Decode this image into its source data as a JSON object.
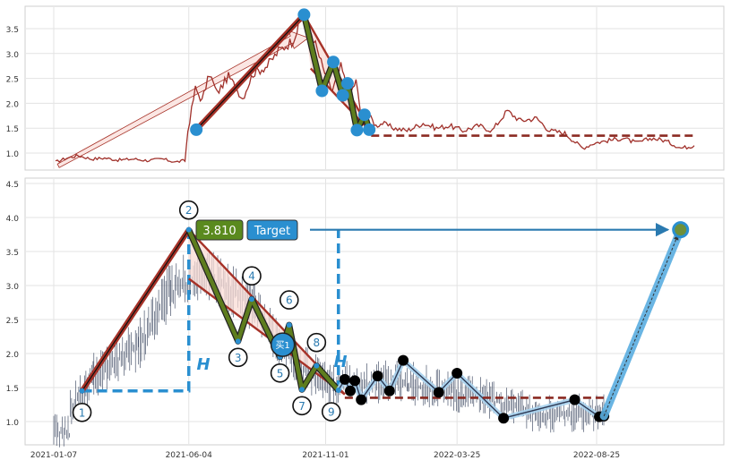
{
  "chart_data": [
    {
      "type": "line",
      "panel": "overview",
      "ylim": [
        0.8,
        3.95
      ],
      "yticks": [
        "1.0",
        "1.5",
        "2.0",
        "2.5",
        "3.0",
        "3.5"
      ],
      "grid": true,
      "price_series": [
        [
          "2021-01-08",
          0.82
        ],
        [
          "2021-01-20",
          0.9
        ],
        [
          "2021-02-01",
          0.95
        ],
        [
          "2021-02-15",
          0.88
        ],
        [
          "2021-03-01",
          0.9
        ],
        [
          "2021-03-15",
          0.86
        ],
        [
          "2021-04-01",
          0.88
        ],
        [
          "2021-04-15",
          0.85
        ],
        [
          "2021-05-01",
          0.88
        ],
        [
          "2021-05-15",
          0.82
        ],
        [
          "2021-05-25",
          0.85
        ],
        [
          "2021-05-28",
          1.45
        ],
        [
          "2021-06-05",
          2.3
        ],
        [
          "2021-06-12",
          2.05
        ],
        [
          "2021-06-20",
          2.6
        ],
        [
          "2021-06-28",
          2.2
        ],
        [
          "2021-07-10",
          2.55
        ],
        [
          "2021-07-25",
          2.1
        ],
        [
          "2021-08-05",
          2.6
        ],
        [
          "2021-08-20",
          2.75
        ],
        [
          "2021-09-01",
          3.05
        ],
        [
          "2021-09-15",
          3.25
        ],
        [
          "2021-09-28",
          3.78
        ],
        [
          "2021-10-08",
          3.3
        ],
        [
          "2021-10-18",
          2.7
        ],
        [
          "2021-10-28",
          2.25
        ],
        [
          "2021-11-06",
          2.75
        ],
        [
          "2021-11-15",
          2.15
        ],
        [
          "2021-11-22",
          2.45
        ],
        [
          "2021-11-29",
          1.55
        ],
        [
          "2021-12-06",
          1.75
        ],
        [
          "2021-12-13",
          1.55
        ],
        [
          "2021-12-20",
          1.6
        ],
        [
          "2022-01-01",
          1.5
        ],
        [
          "2022-01-15",
          1.45
        ],
        [
          "2022-02-01",
          1.6
        ],
        [
          "2022-02-15",
          1.5
        ],
        [
          "2022-03-01",
          1.55
        ],
        [
          "2022-03-15",
          1.45
        ],
        [
          "2022-04-01",
          1.55
        ],
        [
          "2022-04-15",
          1.45
        ],
        [
          "2022-05-01",
          1.85
        ],
        [
          "2022-05-15",
          1.65
        ],
        [
          "2022-06-01",
          1.7
        ],
        [
          "2022-06-15",
          1.45
        ],
        [
          "2022-07-01",
          1.4
        ],
        [
          "2022-07-10",
          1.25
        ],
        [
          "2022-07-20",
          1.1
        ],
        [
          "2022-08-01",
          1.2
        ],
        [
          "2022-08-15",
          1.25
        ],
        [
          "2022-09-01",
          1.3
        ],
        [
          "2022-09-15",
          1.2
        ],
        [
          "2022-10-01",
          1.3
        ],
        [
          "2022-10-15",
          1.25
        ],
        [
          "2022-11-01",
          1.1
        ],
        [
          "2022-11-15",
          1.15
        ]
      ],
      "pattern_points": [
        [
          "2021-06-06",
          1.47
        ],
        [
          "2021-09-28",
          3.78
        ],
        [
          "2021-10-17",
          2.25
        ],
        [
          "2021-10-29",
          2.83
        ],
        [
          "2021-11-08",
          2.16
        ],
        [
          "2021-11-13",
          2.4
        ],
        [
          "2021-11-23",
          1.46
        ],
        [
          "2021-12-01",
          1.77
        ],
        [
          "2021-12-06",
          1.47
        ]
      ],
      "trend_upper": [
        [
          "2021-09-28",
          3.78
        ],
        [
          "2021-12-08",
          1.42
        ]
      ],
      "trend_lower": [
        [
          "2021-10-05",
          2.7
        ],
        [
          "2021-12-08",
          1.42
        ]
      ],
      "support_level": [
        [
          "2021-12-08",
          1.35
        ],
        [
          "2022-11-15",
          1.35
        ]
      ],
      "flagpole": [
        [
          "2021-06-06",
          1.47
        ],
        [
          "2021-09-28",
          3.78
        ]
      ],
      "projection_arrow": [
        [
          "2021-01-10",
          0.78
        ],
        [
          "2021-09-25",
          3.28
        ]
      ]
    },
    {
      "type": "scatter",
      "panel": "pattern-detail",
      "xticks": [
        "2021-01-07",
        "2021-06-04",
        "2021-11-01",
        "2022-03-25",
        "2022-08-25"
      ],
      "yticks": [
        "1.0",
        "1.5",
        "2.0",
        "2.5",
        "3.0",
        "3.5",
        "4.0",
        "4.5"
      ],
      "ylim": [
        0.65,
        4.58
      ],
      "grid": true,
      "pattern_points": [
        {
          "label": "1",
          "x": "2021-02-07",
          "y": 1.45
        },
        {
          "label": "2",
          "x": "2021-06-04",
          "y": 3.82
        },
        {
          "label": "3",
          "x": "2021-07-28",
          "y": 2.18
        },
        {
          "label": "4",
          "x": "2021-08-12",
          "y": 2.8
        },
        {
          "label": "5",
          "x": "2021-09-12",
          "y": 1.95
        },
        {
          "label": "6",
          "x": "2021-09-22",
          "y": 2.42
        },
        {
          "label": "7",
          "x": "2021-10-06",
          "y": 1.47
        },
        {
          "label": "8",
          "x": "2021-10-22",
          "y": 1.82
        },
        {
          "label": "9",
          "x": "2021-11-15",
          "y": 1.46
        }
      ],
      "buy_marker": {
        "label": "买1",
        "x": "2021-09-15",
        "y": 2.13
      },
      "breakout_price": "3.810",
      "target_label": "Target",
      "height_label": "H",
      "target_point": [
        "2022-11-25",
        3.82
      ],
      "post_breakout_swings": [
        [
          "2021-11-22",
          1.62
        ],
        [
          "2021-11-28",
          1.45
        ],
        [
          "2021-12-03",
          1.6
        ],
        [
          "2021-12-10",
          1.32
        ],
        [
          "2021-12-28",
          1.67
        ],
        [
          "2022-01-10",
          1.45
        ],
        [
          "2022-01-25",
          1.9
        ],
        [
          "2022-03-05",
          1.43
        ],
        [
          "2022-03-25",
          1.71
        ],
        [
          "2022-05-15",
          1.05
        ],
        [
          "2022-08-01",
          1.32
        ],
        [
          "2022-08-28",
          1.07
        ],
        [
          "2022-09-02",
          1.08
        ]
      ],
      "trend_upper": [
        [
          "2021-06-04",
          3.82
        ],
        [
          "2021-11-22",
          1.4
        ]
      ],
      "trend_lower": [
        [
          "2021-06-04",
          3.1
        ],
        [
          "2021-11-22",
          1.4
        ]
      ],
      "support_level": [
        [
          "2021-11-22",
          1.35
        ],
        [
          "2022-09-02",
          1.35
        ]
      ],
      "flagpole": [
        [
          "2021-02-07",
          1.45
        ],
        [
          "2021-06-04",
          3.82
        ]
      ]
    }
  ]
}
